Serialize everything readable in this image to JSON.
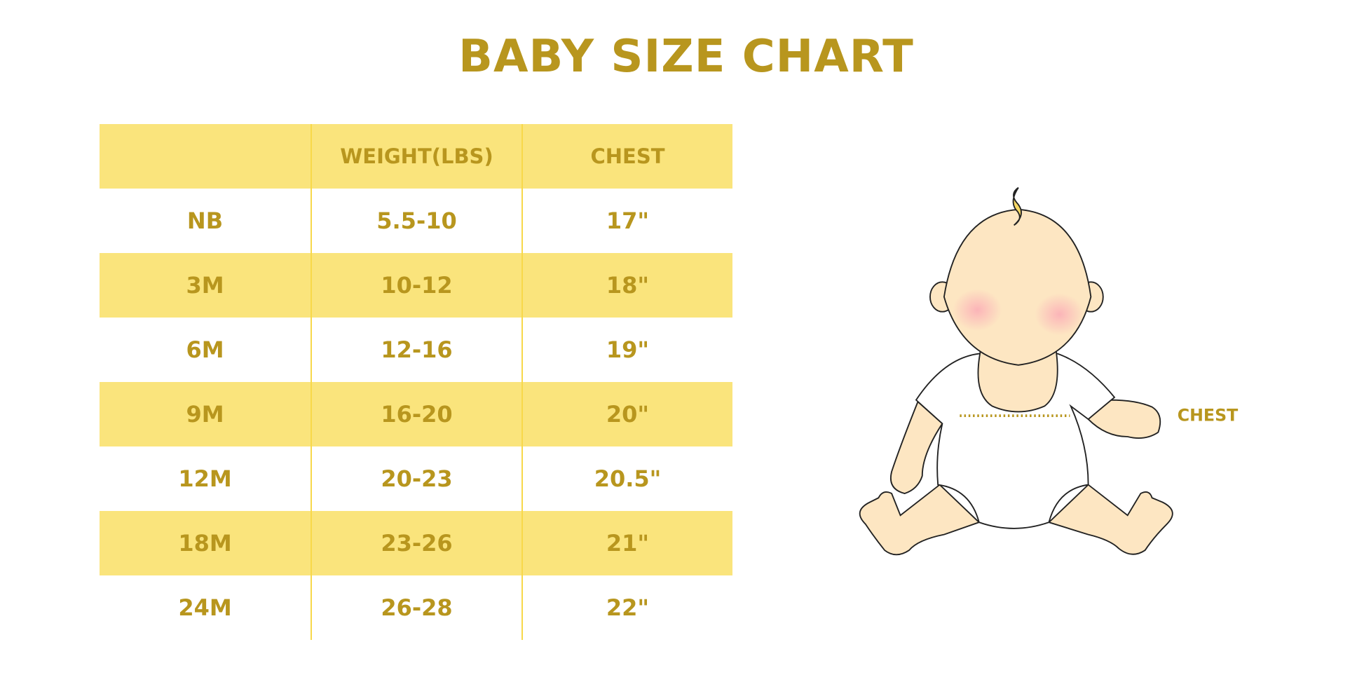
{
  "title": "BABY SIZE CHART",
  "colors": {
    "accent": "#b8961e",
    "row_fill": "#fae47c",
    "divider": "#f8d84a"
  },
  "table": {
    "headers": [
      "",
      "WEIGHT(LBS)",
      "CHEST"
    ],
    "rows": [
      [
        "NB",
        "5.5-10",
        "17\""
      ],
      [
        "3M",
        "10-12",
        "18\""
      ],
      [
        "6M",
        "12-16",
        "19\""
      ],
      [
        "9M",
        "16-20",
        "20\""
      ],
      [
        "12M",
        "20-23",
        "20.5\""
      ],
      [
        "18M",
        "23-26",
        "21\""
      ],
      [
        "24M",
        "26-28",
        "22\""
      ]
    ]
  },
  "illustration": {
    "icon": "baby-illustration",
    "chest_label": "CHEST"
  }
}
